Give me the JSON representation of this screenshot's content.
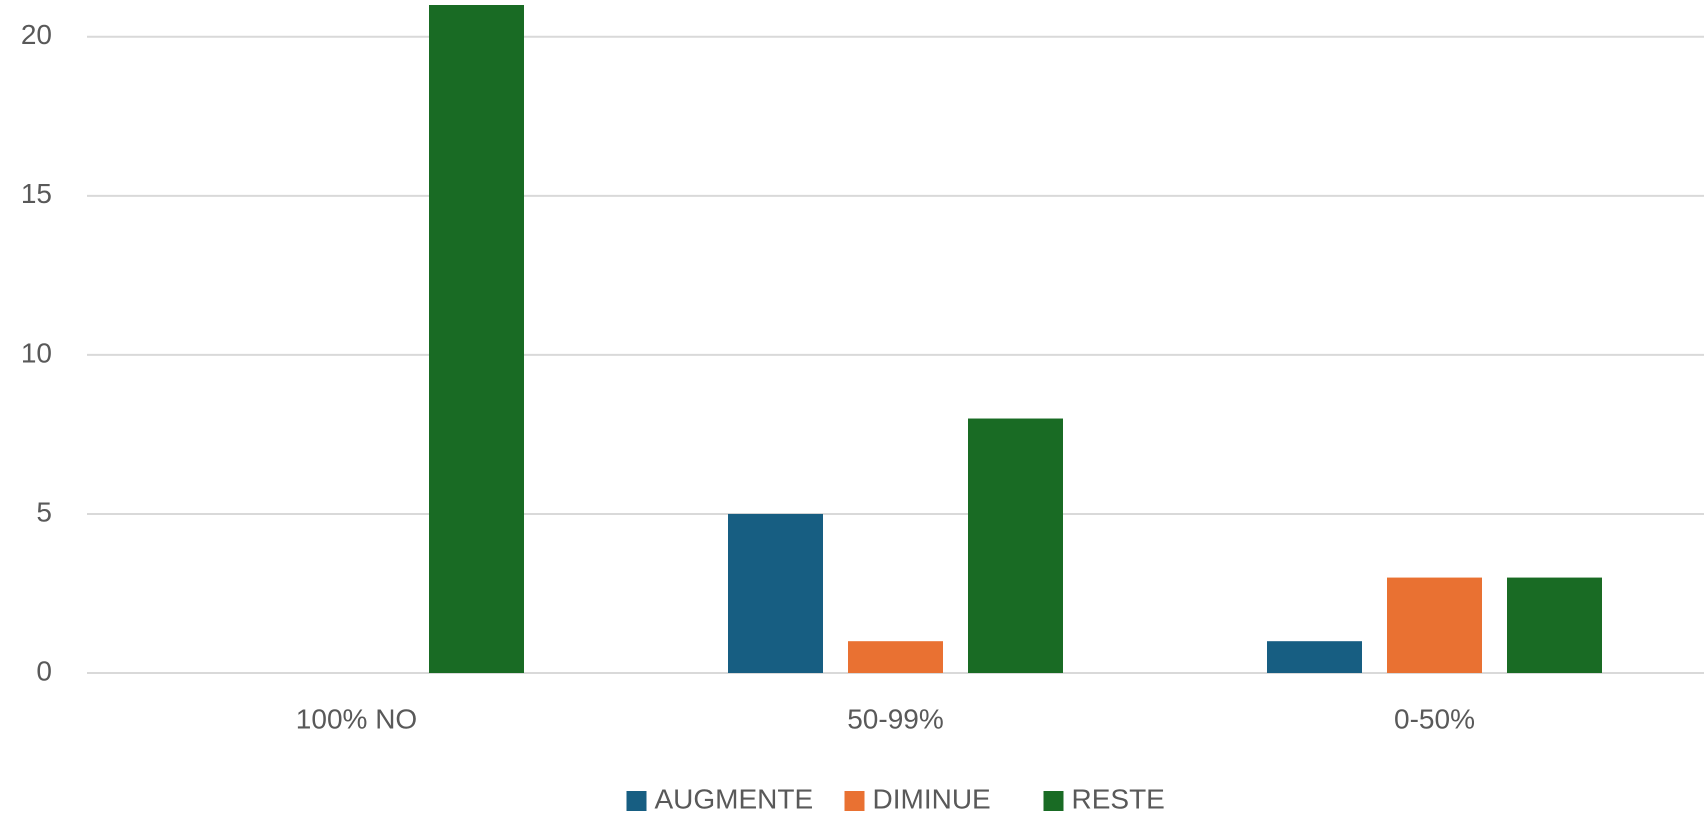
{
  "chart_data": {
    "type": "bar",
    "categories": [
      "100% NO",
      "50-99%",
      "0-50%"
    ],
    "series": [
      {
        "name": "AUGMENTE",
        "color": "#175e82",
        "values": [
          0,
          5,
          1
        ]
      },
      {
        "name": "DIMINUE",
        "color": "#e97132",
        "values": [
          0,
          1,
          3
        ]
      },
      {
        "name": "RESTE",
        "color": "#196b24",
        "values": [
          21,
          8,
          3
        ]
      }
    ],
    "ylim": [
      0,
      21
    ],
    "yticks": [
      0,
      5,
      10,
      15,
      20
    ],
    "grid": true,
    "legend": "bottom"
  }
}
